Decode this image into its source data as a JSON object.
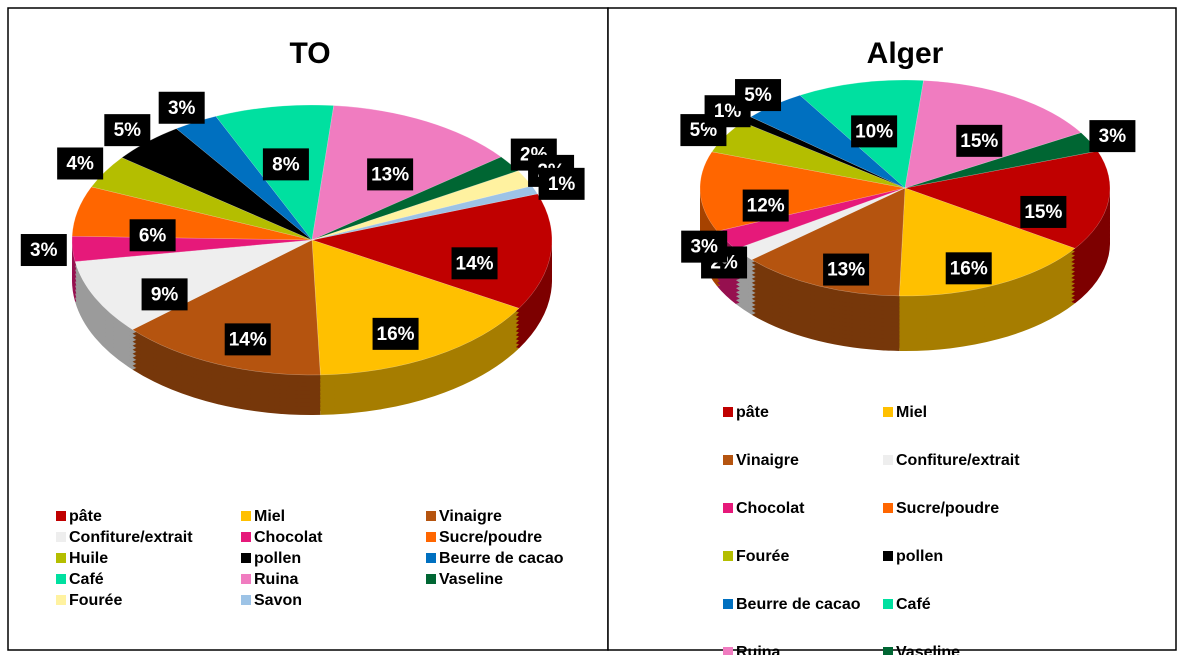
{
  "chart_data": [
    {
      "type": "pie",
      "title": "TO",
      "categories": [
        "pâte",
        "Miel",
        "Vinaigre",
        "Confiture/extrait",
        "Chocolat",
        "Sucre/poudre",
        "Huile",
        "pollen",
        "Beurre de cacao",
        "Café",
        "Ruina",
        "Vaseline",
        "Fourée",
        "Savon"
      ],
      "values": [
        14,
        16,
        14,
        9,
        3,
        6,
        4,
        5,
        3,
        8,
        13,
        2,
        2,
        1
      ],
      "value_labels": [
        "14%",
        "16%",
        "14%",
        "9%",
        "3%",
        "6%",
        "4%",
        "5%",
        "3%",
        "8%",
        "13%",
        "2%",
        "2%",
        "1%"
      ],
      "colors": [
        "#c00000",
        "#ffc000",
        "#b5540f",
        "#eeeeee",
        "#e6197a",
        "#ff6600",
        "#b4be00",
        "#000000",
        "#0070c0",
        "#00e0a0",
        "#f07cc0",
        "#006633",
        "#fff2a0",
        "#9dc3e6"
      ]
    },
    {
      "type": "pie",
      "title": "Alger",
      "categories": [
        "pâte",
        "Miel",
        "Vinaigre",
        "Confiture/extrait",
        "Chocolat",
        "Sucre/poudre",
        "Fourée",
        "pollen",
        "Beurre de cacao",
        "Café",
        "Ruina",
        "Vaseline"
      ],
      "values": [
        15,
        16,
        13,
        2,
        3,
        12,
        5,
        1,
        5,
        10,
        15,
        3
      ],
      "value_labels": [
        "15%",
        "16%",
        "13%",
        "2%",
        "3%",
        "12%",
        "5%",
        "1%",
        "5%",
        "10%",
        "15%",
        "3%"
      ],
      "colors": [
        "#c00000",
        "#ffc000",
        "#b5540f",
        "#eeeeee",
        "#e6197a",
        "#ff6600",
        "#b4be00",
        "#000000",
        "#0070c0",
        "#00e0a0",
        "#f07cc0",
        "#006633"
      ]
    }
  ]
}
